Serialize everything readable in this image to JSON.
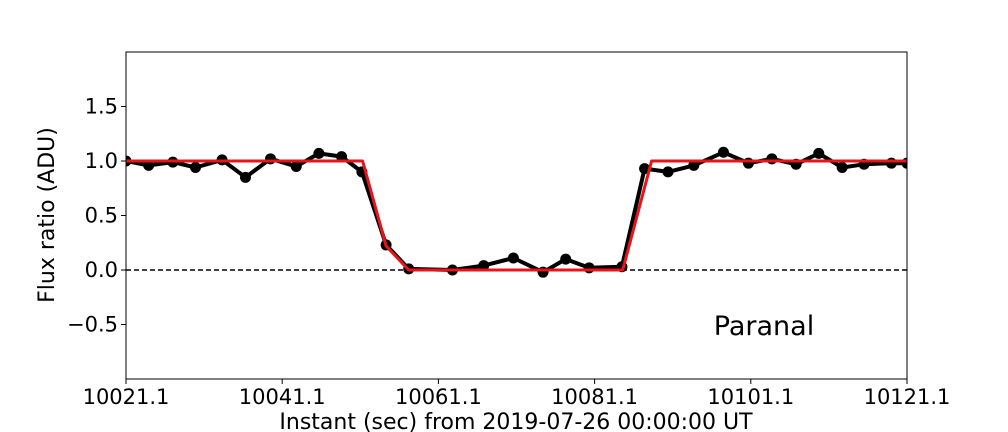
{
  "chart_data": {
    "type": "line",
    "title": "",
    "xlabel": "Instant (sec) from 2019-07-26 00:00:00 UT",
    "ylabel": "Flux ratio (ADU)",
    "xlim": [
      10021.1,
      10121.1
    ],
    "ylim": [
      -1.0,
      2.0
    ],
    "x_ticks": [
      10021.1,
      10041.1,
      10061.1,
      10081.1,
      10101.1,
      10121.1
    ],
    "x_tick_labels": [
      "10021.1",
      "10041.1",
      "10061.1",
      "10081.1",
      "10101.1",
      "10121.1"
    ],
    "y_ticks": [
      -0.5,
      0.0,
      0.5,
      1.0,
      1.5
    ],
    "y_tick_labels": [
      "−0.5",
      "0.0",
      "0.5",
      "1.0",
      "1.5"
    ],
    "grid": false,
    "reference_line": {
      "y": 0.0,
      "style": "dashed",
      "color": "#000000"
    },
    "annotation": "Paranal",
    "series": [
      {
        "style": "line+markers",
        "color": "#000000",
        "x": [
          10021.1,
          10024.0,
          10027.1,
          10030.0,
          10033.4,
          10036.4,
          10039.6,
          10042.9,
          10045.8,
          10048.7,
          10051.3,
          10054.4,
          10057.3,
          10062.9,
          10066.9,
          10070.7,
          10074.5,
          10077.4,
          10080.4,
          10084.6,
          10087.5,
          10090.5,
          10093.8,
          10097.6,
          10100.8,
          10103.8,
          10106.9,
          10109.8,
          10112.8,
          10115.6,
          10119.1,
          10121.1
        ],
        "values": [
          1.0,
          0.96,
          0.99,
          0.94,
          1.01,
          0.85,
          1.02,
          0.95,
          1.07,
          1.04,
          0.9,
          0.23,
          0.01,
          0.0,
          0.04,
          0.11,
          -0.02,
          0.1,
          0.02,
          0.03,
          0.93,
          0.9,
          0.96,
          1.08,
          0.98,
          1.02,
          0.97,
          1.07,
          0.94,
          0.97,
          0.98,
          0.98
        ]
      },
      {
        "style": "line",
        "color": "#e8141a",
        "x": [
          10021.1,
          10051.4,
          10054.4,
          10057.3,
          10084.7,
          10088.4,
          10121.1
        ],
        "values": [
          1.0,
          1.0,
          0.22,
          0.0,
          0.0,
          1.0,
          1.0
        ]
      }
    ]
  }
}
